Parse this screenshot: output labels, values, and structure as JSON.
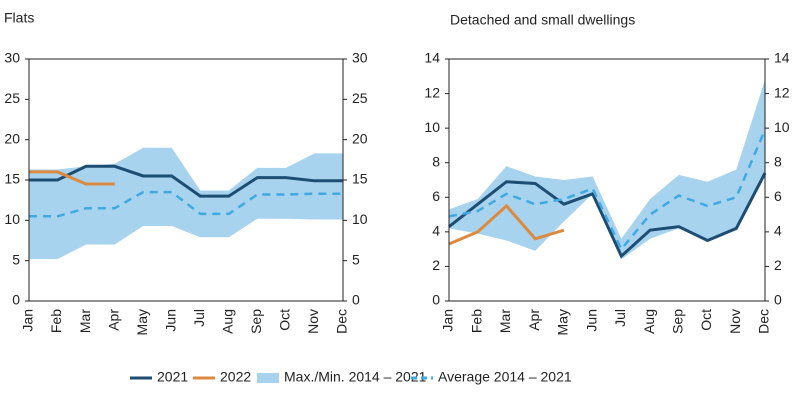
{
  "chart_data": [
    {
      "type": "line",
      "title": "Flats",
      "categories": [
        "Jan",
        "Feb",
        "Mar",
        "Apr",
        "May",
        "Jun",
        "Jul",
        "Aug",
        "Sep",
        "Oct",
        "Nov",
        "Dec"
      ],
      "ylim": [
        0,
        30
      ],
      "yticks": [
        0,
        5,
        10,
        15,
        20,
        25,
        30
      ],
      "y2lim": [
        0,
        30
      ],
      "y2ticks": [
        0,
        5,
        10,
        15,
        20,
        25,
        30
      ],
      "series": [
        {
          "name": "2021",
          "color": "#1d4d73",
          "values": [
            15,
            15,
            16.7,
            16.7,
            15.5,
            15.5,
            13,
            13,
            15.3,
            15.3,
            14.9,
            14.9
          ]
        },
        {
          "name": "2022",
          "color": "#dc8a3f",
          "values": [
            16,
            16,
            14.5,
            14.5,
            null,
            null,
            null,
            null,
            null,
            null,
            null,
            null
          ]
        },
        {
          "name": "Max./Min. 2014 – 2021",
          "color": "#a8d3ef",
          "type": "band",
          "upper": [
            16.3,
            16.3,
            16.7,
            17,
            19,
            19,
            13.7,
            13.7,
            16.5,
            16.5,
            18.3,
            18.3
          ],
          "lower": [
            5.2,
            5.2,
            7,
            7,
            9.3,
            9.3,
            7.9,
            7.9,
            10.2,
            10.2,
            10.1,
            10.1
          ]
        },
        {
          "name": "Average 2014 – 2021",
          "color": "#3fa9e0",
          "dashed": true,
          "values": [
            10.5,
            10.5,
            11.5,
            11.5,
            13.5,
            13.5,
            10.8,
            10.8,
            13.2,
            13.2,
            13.3,
            13.3
          ]
        }
      ]
    },
    {
      "type": "line",
      "title": "Detached and small dwellings",
      "categories": [
        "Jan",
        "Feb",
        "Mar",
        "Apr",
        "May",
        "Jun",
        "Jul",
        "Aug",
        "Sep",
        "Oct",
        "Nov",
        "Dec"
      ],
      "ylim": [
        0,
        14
      ],
      "yticks": [
        0,
        2,
        4,
        6,
        8,
        10,
        12,
        14
      ],
      "y2lim": [
        0,
        14
      ],
      "y2ticks": [
        0,
        2,
        4,
        6,
        8,
        10,
        12,
        14
      ],
      "series": [
        {
          "color": "#1d4d73",
          "values": [
            4.3,
            5.6,
            6.9,
            6.8,
            5.6,
            6.2,
            2.6,
            4.1,
            4.3,
            3.5,
            4.2,
            7.4
          ]
        },
        {
          "color": "#dc8a3f",
          "values": [
            3.3,
            4.0,
            5.5,
            3.6,
            4.1,
            null,
            null,
            null,
            null,
            null,
            null,
            null
          ]
        },
        {
          "color": "#a8d3ef",
          "type": "band",
          "upper": [
            5.3,
            5.9,
            7.8,
            7.2,
            7.0,
            7.2,
            3.6,
            5.9,
            7.3,
            6.9,
            7.6,
            12.8
          ],
          "lower": [
            4.2,
            3.9,
            3.5,
            2.9,
            4.6,
            6.2,
            2.4,
            3.6,
            4.2,
            3.5,
            4.1,
            7.4
          ]
        },
        {
          "color": "#3fa9e0",
          "dashed": true,
          "values": [
            4.9,
            5.2,
            6.2,
            5.6,
            5.9,
            6.5,
            3.0,
            5.0,
            6.1,
            5.5,
            6.0,
            9.9
          ]
        }
      ]
    }
  ]
}
